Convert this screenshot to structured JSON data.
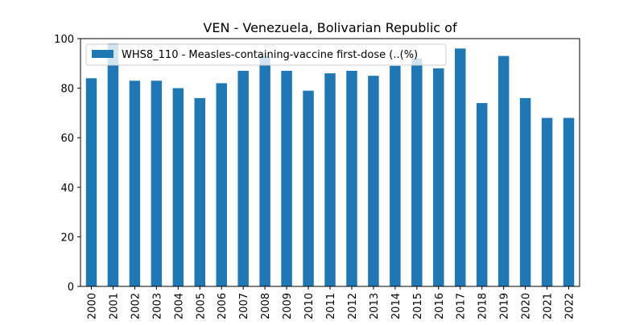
{
  "chart_data": {
    "type": "bar",
    "title": "VEN - Venezuela, Bolivarian Republic of",
    "xlabel": "",
    "ylabel": "",
    "ylim": [
      0,
      100
    ],
    "yticks": [
      0,
      20,
      40,
      60,
      80,
      100
    ],
    "grid": false,
    "legend_position": "top-left",
    "categories": [
      "2000",
      "2001",
      "2002",
      "2003",
      "2004",
      "2005",
      "2006",
      "2007",
      "2008",
      "2009",
      "2010",
      "2011",
      "2012",
      "2013",
      "2014",
      "2015",
      "2016",
      "2017",
      "2018",
      "2019",
      "2020",
      "2021",
      "2022"
    ],
    "series": [
      {
        "name": "WHS8_110 - Measles-containing-vaccine first-dose (..(%)",
        "color": "#1f77b4",
        "values": [
          84,
          98,
          83,
          83,
          80,
          76,
          82,
          87,
          93,
          87,
          79,
          86,
          87,
          85,
          89,
          92,
          88,
          96,
          74,
          93,
          76,
          68,
          68
        ]
      }
    ]
  }
}
